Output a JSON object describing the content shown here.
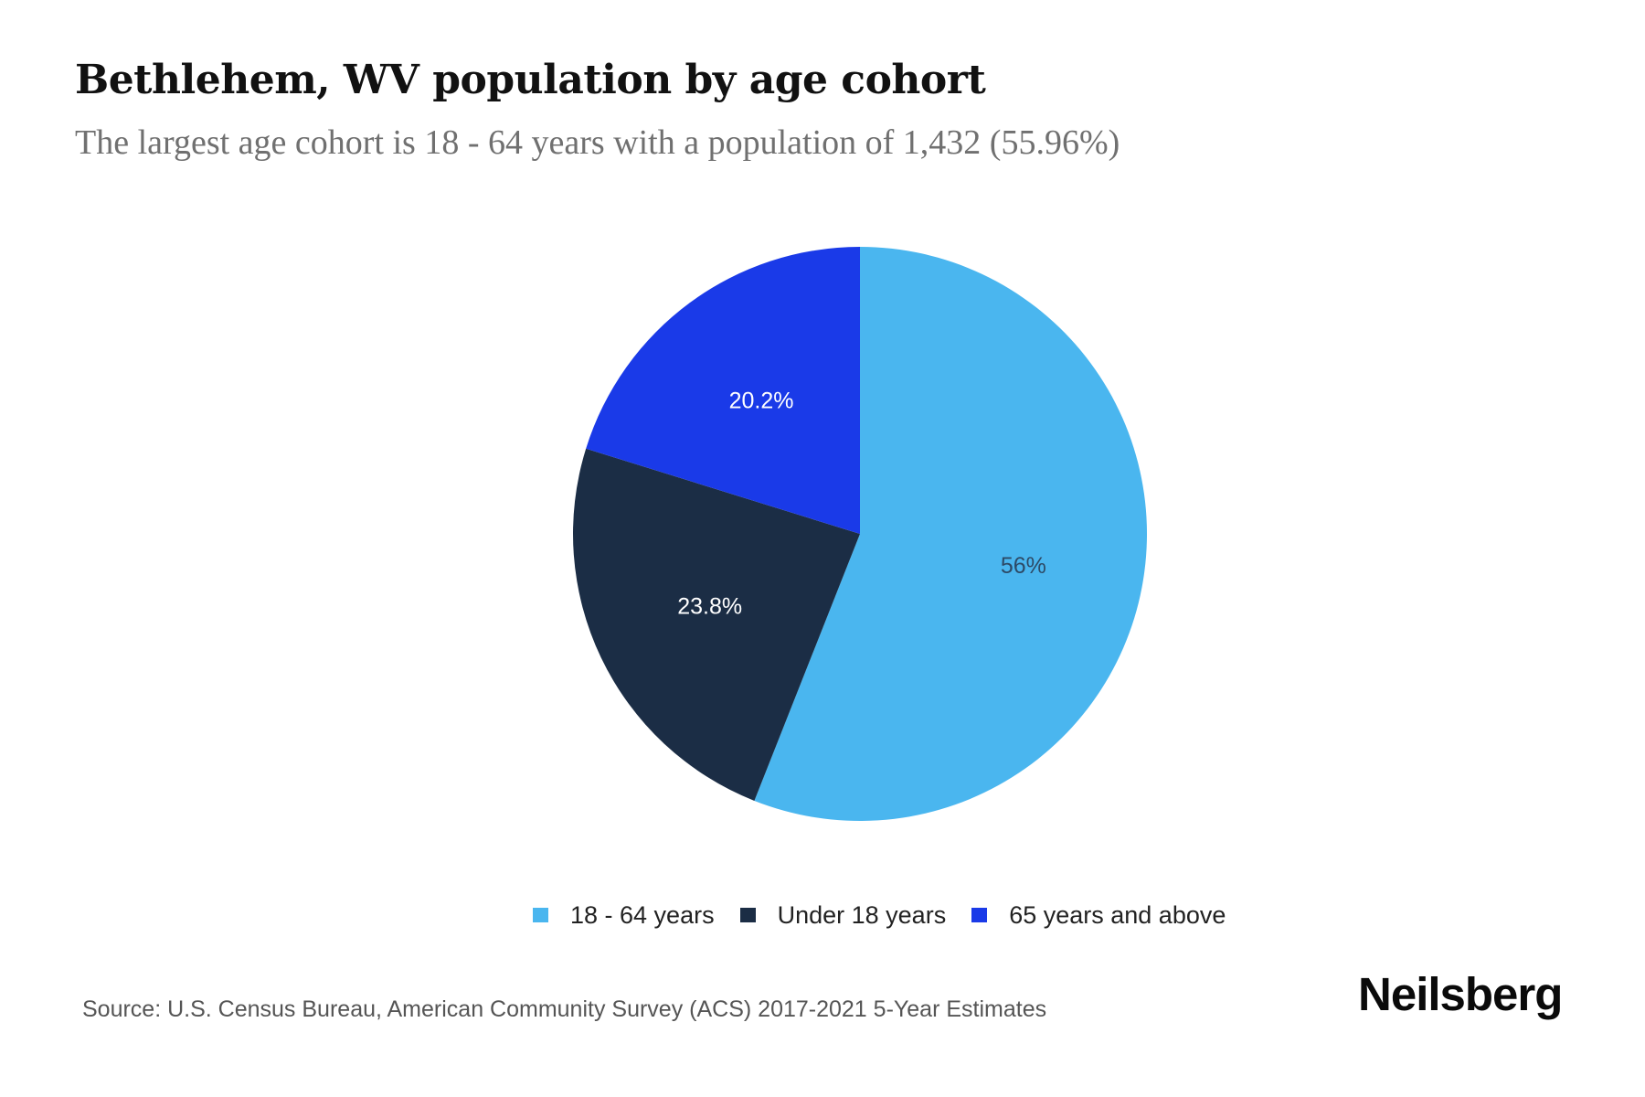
{
  "header": {
    "title": "Bethlehem, WV population by age cohort",
    "subtitle": "The largest age cohort is 18 - 64 years with a population of 1,432 (55.96%)"
  },
  "chart_data": {
    "type": "pie",
    "title": "Bethlehem, WV population by age cohort",
    "subtitle": "The largest age cohort is 18 - 64 years with a population of 1,432 (55.96%)",
    "categories": [
      "18 - 64 years",
      "Under 18 years",
      "65 years and above"
    ],
    "values": [
      56.0,
      23.8,
      20.2
    ],
    "value_labels": [
      "56%",
      "23.8%",
      "20.2%"
    ],
    "colors": [
      "#4ab6ef",
      "#1b2d45",
      "#1a3ae8"
    ],
    "label_colors": [
      "#2d4a66",
      "#ffffff",
      "#ffffff"
    ],
    "start_angle_deg": 0,
    "direction": "clockwise",
    "legend_position": "bottom"
  },
  "legend": {
    "items": [
      {
        "label": "18 - 64 years",
        "color": "#4ab6ef"
      },
      {
        "label": "Under 18 years",
        "color": "#1b2d45"
      },
      {
        "label": "65 years and above",
        "color": "#1a3ae8"
      }
    ]
  },
  "footer": {
    "source": "Source: U.S. Census Bureau, American Community Survey (ACS) 2017-2021 5-Year Estimates",
    "brand": "Neilsberg"
  }
}
